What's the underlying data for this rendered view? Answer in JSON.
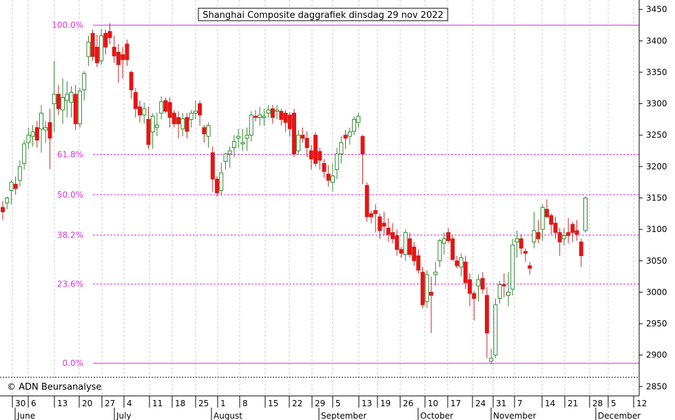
{
  "chart_data": {
    "type": "candlestick",
    "title": "Shanghai Composite daggrafiek dinsdag 29 nov 2022",
    "copyright": "© ADN Beursanalyse",
    "ylim": [
      2835,
      3465
    ],
    "y_ticks": [
      "2850",
      "2900",
      "2950",
      "3000",
      "3050",
      "3100",
      "3150",
      "3200",
      "3250",
      "3300",
      "3350",
      "3400",
      "3450"
    ],
    "x_day_labels": [
      "30",
      "6",
      "13",
      "20",
      "27",
      "4",
      "11",
      "18",
      "25",
      "1",
      "8",
      "15",
      "22",
      "29",
      "5",
      "13",
      "19",
      "26",
      "10",
      "17",
      "24",
      "31",
      "7",
      "14",
      "21",
      "28",
      "5",
      "12"
    ],
    "x_month_labels": [
      "June",
      "July",
      "August",
      "September",
      "October",
      "November",
      "December"
    ],
    "fib_levels": [
      {
        "label": "100.0%",
        "value": 3425
      },
      {
        "label": "61.8%",
        "value": 3219
      },
      {
        "label": "50.0%",
        "value": 3155
      },
      {
        "label": "38.2%",
        "value": 3091
      },
      {
        "label": "23.6%",
        "value": 3013
      },
      {
        "label": "0.0%",
        "value": 2887
      }
    ],
    "candles": [
      [
        3135,
        3145,
        3115,
        3128
      ],
      [
        3142,
        3152,
        3132,
        3150
      ],
      [
        3162,
        3178,
        3140,
        3175
      ],
      [
        3172,
        3184,
        3155,
        3165
      ],
      [
        3178,
        3210,
        3168,
        3200
      ],
      [
        3205,
        3242,
        3195,
        3236
      ],
      [
        3238,
        3262,
        3228,
        3250
      ],
      [
        3248,
        3266,
        3232,
        3255
      ],
      [
        3262,
        3272,
        3230,
        3242
      ],
      [
        3260,
        3298,
        3222,
        3285
      ],
      [
        3258,
        3272,
        3238,
        3262
      ],
      [
        3270,
        3292,
        3196,
        3245
      ],
      [
        3300,
        3368,
        3255,
        3315
      ],
      [
        3315,
        3330,
        3282,
        3292
      ],
      [
        3290,
        3340,
        3268,
        3310
      ],
      [
        3305,
        3336,
        3278,
        3315
      ],
      [
        3302,
        3328,
        3278,
        3318
      ],
      [
        3315,
        3330,
        3258,
        3268
      ],
      [
        3268,
        3325,
        3262,
        3320
      ],
      [
        3322,
        3352,
        3305,
        3348
      ],
      [
        3375,
        3408,
        3360,
        3398
      ],
      [
        3412,
        3418,
        3368,
        3375
      ],
      [
        3390,
        3410,
        3358,
        3365
      ],
      [
        3368,
        3418,
        3362,
        3408
      ],
      [
        3412,
        3418,
        3378,
        3390
      ],
      [
        3415,
        3428,
        3395,
        3405
      ],
      [
        3390,
        3408,
        3365,
        3376
      ],
      [
        3382,
        3395,
        3333,
        3362
      ],
      [
        3378,
        3390,
        3340,
        3370
      ],
      [
        3395,
        3402,
        3360,
        3370
      ],
      [
        3350,
        3352,
        3308,
        3322
      ],
      [
        3318,
        3325,
        3278,
        3292
      ],
      [
        3295,
        3305,
        3270,
        3282
      ],
      [
        3282,
        3302,
        3268,
        3292
      ],
      [
        3275,
        3295,
        3228,
        3235
      ],
      [
        3255,
        3285,
        3228,
        3280
      ],
      [
        3262,
        3286,
        3248,
        3266
      ],
      [
        3285,
        3312,
        3275,
        3303
      ],
      [
        3305,
        3310,
        3285,
        3288
      ],
      [
        3302,
        3310,
        3262,
        3278
      ],
      [
        3285,
        3290,
        3262,
        3268
      ],
      [
        3278,
        3288,
        3245,
        3268
      ],
      [
        3260,
        3285,
        3248,
        3276
      ],
      [
        3278,
        3285,
        3245,
        3256
      ],
      [
        3275,
        3290,
        3262,
        3285
      ],
      [
        3285,
        3305,
        3275,
        3288
      ],
      [
        3300,
        3305,
        3265,
        3282
      ],
      [
        3262,
        3266,
        3238,
        3252
      ],
      [
        3248,
        3270,
        3230,
        3265
      ],
      [
        3222,
        3232,
        3160,
        3180
      ],
      [
        3180,
        3185,
        3152,
        3158
      ],
      [
        3162,
        3206,
        3155,
        3190
      ],
      [
        3208,
        3222,
        3195,
        3220
      ],
      [
        3220,
        3232,
        3198,
        3225
      ],
      [
        3230,
        3250,
        3215,
        3240
      ],
      [
        3245,
        3260,
        3230,
        3248
      ],
      [
        3236,
        3260,
        3225,
        3238
      ],
      [
        3245,
        3262,
        3225,
        3250
      ],
      [
        3250,
        3288,
        3240,
        3282
      ],
      [
        3280,
        3290,
        3272,
        3278
      ],
      [
        3278,
        3295,
        3265,
        3282
      ],
      [
        3278,
        3292,
        3265,
        3280
      ],
      [
        3285,
        3298,
        3278,
        3290
      ],
      [
        3292,
        3298,
        3268,
        3278
      ],
      [
        3288,
        3298,
        3275,
        3290
      ],
      [
        3288,
        3292,
        3265,
        3275
      ],
      [
        3285,
        3290,
        3255,
        3270
      ],
      [
        3282,
        3286,
        3248,
        3260
      ],
      [
        3285,
        3292,
        3215,
        3220
      ],
      [
        3225,
        3258,
        3218,
        3250
      ],
      [
        3250,
        3262,
        3238,
        3245
      ],
      [
        3245,
        3256,
        3215,
        3230
      ],
      [
        3225,
        3234,
        3195,
        3212
      ],
      [
        3250,
        3255,
        3200,
        3205
      ],
      [
        3224,
        3230,
        3195,
        3210
      ],
      [
        3205,
        3212,
        3182,
        3192
      ],
      [
        3188,
        3202,
        3168,
        3178
      ],
      [
        3175,
        3205,
        3160,
        3185
      ],
      [
        3195,
        3230,
        3180,
        3220
      ],
      [
        3220,
        3248,
        3205,
        3238
      ],
      [
        3250,
        3258,
        3228,
        3245
      ],
      [
        3248,
        3262,
        3235,
        3255
      ],
      [
        3256,
        3280,
        3250,
        3275
      ],
      [
        3270,
        3285,
        3262,
        3280
      ],
      [
        3248,
        3250,
        3172,
        3220
      ],
      [
        3170,
        3175,
        3112,
        3120
      ],
      [
        3125,
        3130,
        3110,
        3120
      ],
      [
        3130,
        3140,
        3095,
        3125
      ],
      [
        3120,
        3125,
        3085,
        3098
      ],
      [
        3110,
        3128,
        3090,
        3105
      ],
      [
        3102,
        3118,
        3080,
        3092
      ],
      [
        3095,
        3110,
        3078,
        3085
      ],
      [
        3090,
        3100,
        3058,
        3068
      ],
      [
        3068,
        3072,
        3055,
        3062
      ],
      [
        3060,
        3100,
        3050,
        3095
      ],
      [
        3085,
        3095,
        3055,
        3060
      ],
      [
        3072,
        3080,
        3042,
        3050
      ],
      [
        3058,
        3068,
        3030,
        3035
      ],
      [
        3032,
        3040,
        2975,
        2980
      ],
      [
        2985,
        3035,
        2975,
        3028
      ],
      [
        3000,
        3025,
        2935,
        2995
      ],
      [
        3028,
        3048,
        3010,
        3032
      ],
      [
        3050,
        3085,
        3040,
        3082
      ],
      [
        3078,
        3095,
        3060,
        3085
      ],
      [
        3095,
        3102,
        3078,
        3082
      ],
      [
        3085,
        3090,
        3050,
        3052
      ],
      [
        3050,
        3058,
        3038,
        3042
      ],
      [
        3040,
        3062,
        3025,
        3055
      ],
      [
        3048,
        3058,
        3005,
        3015
      ],
      [
        3020,
        3030,
        2978,
        2998
      ],
      [
        2998,
        3002,
        2955,
        2990
      ],
      [
        3010,
        3028,
        2985,
        3020
      ],
      [
        3022,
        3032,
        2998,
        3005
      ],
      [
        2995,
        3008,
        2895,
        2935
      ],
      [
        2890,
        2910,
        2885,
        2895
      ],
      [
        2900,
        2990,
        2895,
        2980
      ],
      [
        2990,
        3018,
        2982,
        3012
      ],
      [
        3012,
        3030,
        2992,
        3010
      ],
      [
        2995,
        3032,
        2978,
        3000
      ],
      [
        3005,
        3085,
        2995,
        3075
      ],
      [
        3080,
        3098,
        3055,
        3085
      ],
      [
        3085,
        3092,
        3060,
        3070
      ],
      [
        3065,
        3070,
        3048,
        3062
      ],
      [
        3042,
        3048,
        3028,
        3038
      ],
      [
        3080,
        3128,
        3070,
        3098
      ],
      [
        3095,
        3115,
        3078,
        3085
      ],
      [
        3100,
        3140,
        3082,
        3135
      ],
      [
        3132,
        3148,
        3118,
        3120
      ],
      [
        3122,
        3125,
        3092,
        3108
      ],
      [
        3110,
        3120,
        3085,
        3095
      ],
      [
        3095,
        3102,
        3058,
        3080
      ],
      [
        3085,
        3102,
        3075,
        3090
      ],
      [
        3095,
        3118,
        3078,
        3090
      ],
      [
        3108,
        3112,
        3080,
        3095
      ],
      [
        3098,
        3115,
        3082,
        3092
      ],
      [
        3080,
        3085,
        3040,
        3058
      ],
      [
        3098,
        3152,
        3095,
        3150
      ]
    ]
  }
}
